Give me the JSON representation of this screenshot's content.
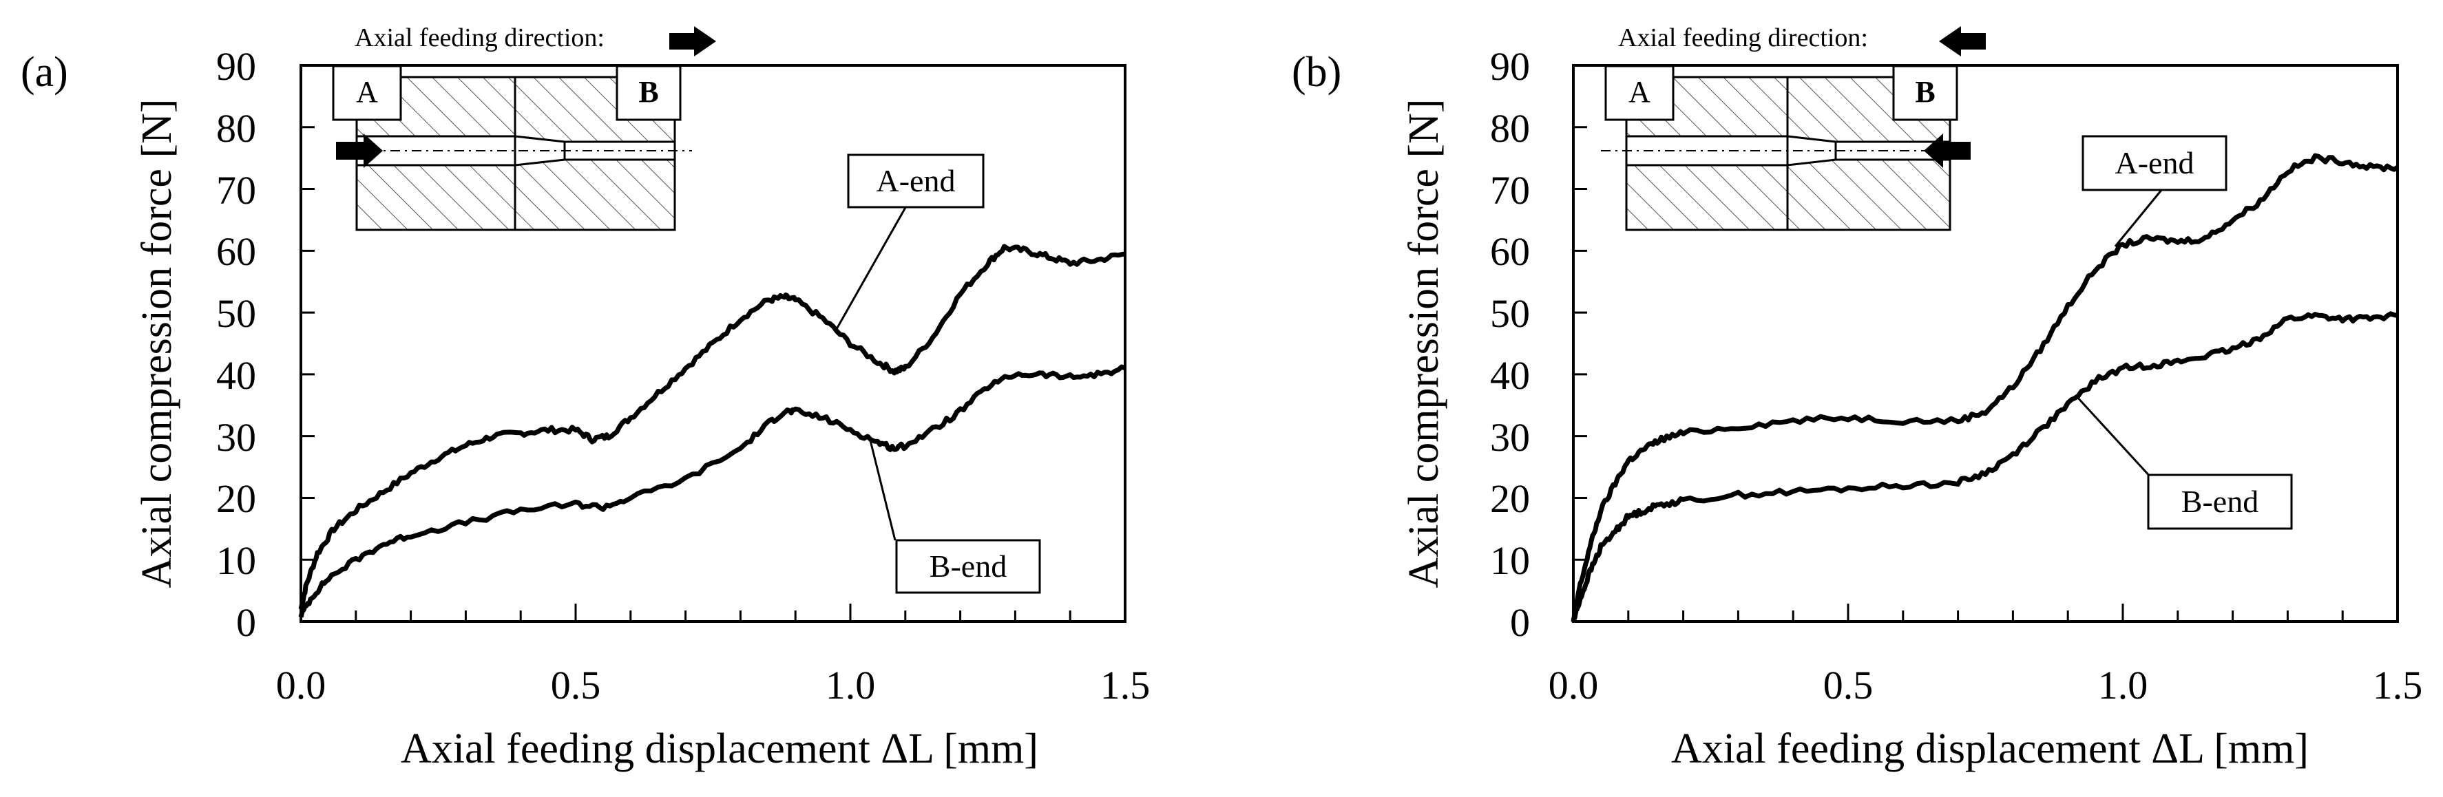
{
  "chart_data": [
    {
      "type": "line",
      "panel": "(a)",
      "xlabel": "Axial feeding displacement ΔL [mm]",
      "ylabel": "Axial compression force [N]",
      "xlim": [
        0,
        1.5
      ],
      "ylim": [
        0,
        90
      ],
      "xticks": [
        "0.0",
        "0.5",
        "1.0",
        "1.5"
      ],
      "yticks": [
        "0",
        "10",
        "20",
        "30",
        "40",
        "50",
        "60",
        "70",
        "80",
        "90"
      ],
      "grid": false,
      "inset": {
        "title": "Axial feeding direction:",
        "arrow_direction": "right",
        "left_label": "A",
        "right_label": "B"
      },
      "series": [
        {
          "name": "A-end",
          "label": "A-end",
          "x": [
            0,
            0.01,
            0.03,
            0.06,
            0.1,
            0.15,
            0.2,
            0.25,
            0.3,
            0.35,
            0.4,
            0.45,
            0.5,
            0.53,
            0.56,
            0.6,
            0.65,
            0.7,
            0.75,
            0.8,
            0.85,
            0.88,
            0.9,
            0.95,
            1.0,
            1.05,
            1.08,
            1.1,
            1.15,
            1.2,
            1.25,
            1.28,
            1.32,
            1.36,
            1.4,
            1.45,
            1.5
          ],
          "y": [
            2,
            6,
            11,
            15,
            18,
            21,
            24,
            26.5,
            28.5,
            30,
            30.5,
            31,
            31,
            29.5,
            30,
            33,
            37,
            41,
            45,
            49,
            52,
            52.5,
            52,
            49,
            45,
            42,
            40.5,
            41,
            46,
            53,
            58,
            60.5,
            60,
            59,
            58,
            58.5,
            59.5
          ]
        },
        {
          "name": "B-end",
          "label": "B-end",
          "x": [
            0,
            0.02,
            0.05,
            0.1,
            0.15,
            0.2,
            0.3,
            0.4,
            0.5,
            0.55,
            0.6,
            0.7,
            0.8,
            0.85,
            0.88,
            0.9,
            0.95,
            1.0,
            1.05,
            1.08,
            1.1,
            1.15,
            1.2,
            1.25,
            1.3,
            1.35,
            1.4,
            1.45,
            1.5
          ],
          "y": [
            1,
            4,
            7,
            10,
            12.5,
            14,
            16,
            18,
            19,
            18.5,
            20,
            23,
            28,
            32,
            34,
            34,
            33,
            31,
            29,
            28,
            28.5,
            31,
            34,
            38,
            40,
            40,
            39.5,
            40,
            41
          ]
        }
      ]
    },
    {
      "type": "line",
      "panel": "(b)",
      "xlabel": "Axial feeding displacement ΔL [mm]",
      "ylabel": "Axial compression force [N]",
      "xlim": [
        0,
        1.5
      ],
      "ylim": [
        0,
        90
      ],
      "xticks": [
        "0.0",
        "0.5",
        "1.0",
        "1.5"
      ],
      "yticks": [
        "0",
        "10",
        "20",
        "30",
        "40",
        "50",
        "60",
        "70",
        "80",
        "90"
      ],
      "grid": false,
      "inset": {
        "title": "Axial feeding direction:",
        "arrow_direction": "left",
        "left_label": "A",
        "right_label": "B"
      },
      "series": [
        {
          "name": "A-end",
          "label": "A-end",
          "x": [
            0,
            0.01,
            0.03,
            0.05,
            0.08,
            0.1,
            0.13,
            0.16,
            0.2,
            0.3,
            0.4,
            0.5,
            0.6,
            0.7,
            0.75,
            0.8,
            0.85,
            0.9,
            0.95,
            1.0,
            1.05,
            1.1,
            1.15,
            1.2,
            1.25,
            1.3,
            1.35,
            1.4,
            1.45,
            1.5
          ],
          "y": [
            0,
            5,
            12,
            18,
            23,
            26,
            28,
            29.5,
            30.5,
            31.5,
            32.5,
            33,
            32.5,
            32.5,
            34,
            38,
            44,
            51,
            57,
            61,
            62,
            61.5,
            62,
            65,
            68,
            73,
            75,
            74.5,
            73.5,
            73.5
          ]
        },
        {
          "name": "B-end",
          "label": "B-end",
          "x": [
            0,
            0.01,
            0.03,
            0.05,
            0.08,
            0.1,
            0.13,
            0.16,
            0.2,
            0.3,
            0.4,
            0.5,
            0.6,
            0.7,
            0.75,
            0.8,
            0.85,
            0.9,
            0.95,
            1.0,
            1.05,
            1.1,
            1.15,
            1.2,
            1.25,
            1.3,
            1.35,
            1.4,
            1.45,
            1.5
          ],
          "y": [
            0,
            3,
            8,
            12,
            15,
            17,
            18,
            19,
            19.5,
            20.5,
            21,
            21.5,
            22,
            22.5,
            24,
            27,
            31,
            35,
            39,
            41,
            41.5,
            42,
            43,
            44,
            46,
            49,
            49.5,
            49,
            49,
            49.5
          ]
        }
      ]
    }
  ]
}
